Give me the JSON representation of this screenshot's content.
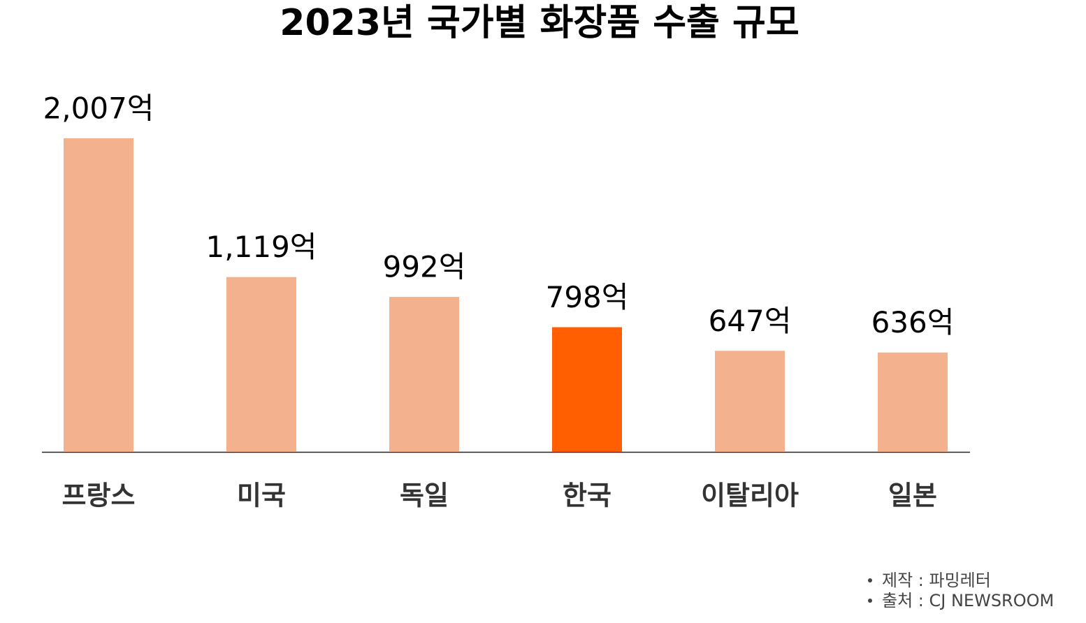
{
  "chart_data": {
    "type": "bar",
    "title": "2023년 국가별 화장품 수출 규모",
    "categories": [
      "프랑스",
      "미국",
      "독일",
      "한국",
      "이탈리아",
      "일본"
    ],
    "values": [
      2007,
      1119,
      992,
      798,
      647,
      636
    ],
    "value_labels": [
      "2,007억",
      "1,119억",
      "992억",
      "798억",
      "647억",
      "636억"
    ],
    "colors": [
      "#f3b18d",
      "#f3b18d",
      "#f3b18d",
      "#ff5f00",
      "#f3b18d",
      "#f3b18d"
    ],
    "notes": [
      "제작 : 파밍레터",
      "출처 : CJ NEWSROOM"
    ]
  }
}
